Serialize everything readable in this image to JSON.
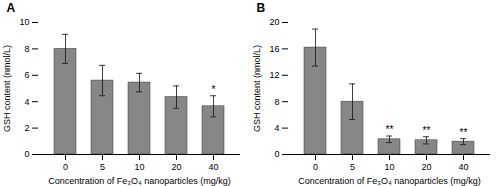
{
  "chart_data": [
    {
      "type": "bar",
      "title": "A",
      "categories": [
        "0",
        "5",
        "10",
        "20",
        "40"
      ],
      "values": [
        8.0,
        5.6,
        5.45,
        4.35,
        3.65
      ],
      "errors": [
        1.1,
        1.15,
        0.7,
        0.85,
        0.8
      ],
      "significance": [
        null,
        null,
        null,
        null,
        "*"
      ],
      "color": "#878787",
      "xlabel": "Concentration of Fe₃O₄ nanoparticles (mg/kg)",
      "ylabel": "GSH content (nmol/L)",
      "ylim": [
        0,
        10
      ],
      "yticks": [
        0,
        2,
        4,
        6,
        8,
        10
      ]
    },
    {
      "type": "bar",
      "title": "B",
      "categories": [
        "0",
        "5",
        "10",
        "20",
        "40"
      ],
      "values": [
        16.2,
        8.0,
        2.3,
        2.15,
        1.95
      ],
      "errors": [
        2.8,
        2.7,
        0.5,
        0.55,
        0.45
      ],
      "significance": [
        null,
        null,
        "**",
        "**",
        "**"
      ],
      "color": "#878787",
      "xlabel": "Concentration of Fe₃O₄ nanoparticles (mg/kg)",
      "ylabel": "GSH content (nmol/L)",
      "ylim": [
        0,
        20
      ],
      "yticks": [
        0,
        4,
        8,
        12,
        16,
        20
      ]
    }
  ]
}
